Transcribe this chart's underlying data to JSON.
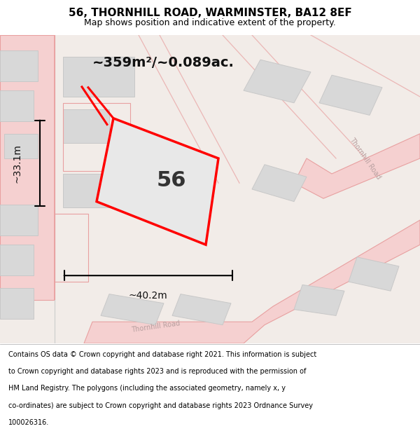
{
  "title_line1": "56, THORNHILL ROAD, WARMINSTER, BA12 8EF",
  "title_line2": "Map shows position and indicative extent of the property.",
  "area_text": "~359m²/~0.089ac.",
  "label_56": "56",
  "dim_width": "~40.2m",
  "dim_height": "~33.1m",
  "footer_lines": [
    "Contains OS data © Crown copyright and database right 2021. This information is subject",
    "to Crown copyright and database rights 2023 and is reproduced with the permission of",
    "HM Land Registry. The polygons (including the associated geometry, namely x, y",
    "co-ordinates) are subject to Crown copyright and database rights 2023 Ordnance Survey",
    "100026316."
  ],
  "road_color": "#e8a0a0",
  "road_fill": "#f5d0d0",
  "building_fill": "#d8d8d8",
  "building_edge": "#c8c8c8",
  "plot_color": "#ff0000",
  "plot_fill": "#e8e8e8",
  "title_color": "#000000",
  "footer_color": "#000000",
  "map_bg": "#f2ece8"
}
